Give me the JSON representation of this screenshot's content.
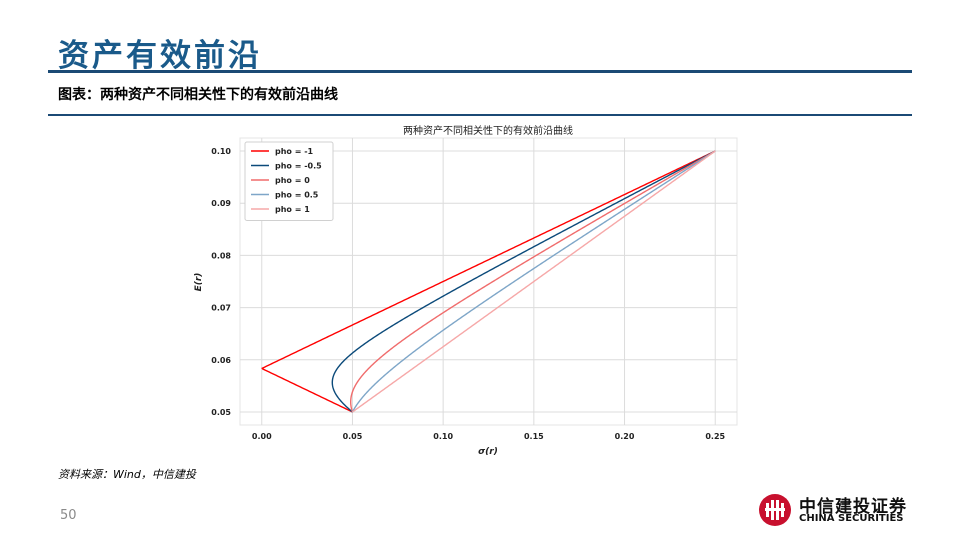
{
  "slide": {
    "title": "资产有效前沿",
    "caption": "图表：两种资产不同相关性下的有效前沿曲线",
    "source": "资料来源：Wind，中信建投",
    "page_number": "50"
  },
  "logo": {
    "name_cn": "中信建投证券",
    "name_en": "CHINA SECURITIES",
    "brand_color": "#c8102e"
  },
  "chart_data": {
    "type": "line",
    "title": "两种资产不同相关性下的有效前沿曲线",
    "xlabel": "σ(r)",
    "ylabel": "E(r)",
    "xlim": [
      -0.012,
      0.262
    ],
    "ylim": [
      0.0475,
      0.1025
    ],
    "x_ticks": [
      "0.00",
      "0.05",
      "0.10",
      "0.15",
      "0.20",
      "0.25"
    ],
    "y_ticks": [
      "0.05",
      "0.06",
      "0.07",
      "0.08",
      "0.09",
      "0.10"
    ],
    "grid": true,
    "legend_position": "top-left",
    "assets": {
      "a": {
        "sigma": 0.05,
        "mean": 0.05
      },
      "b": {
        "sigma": 0.25,
        "mean": 0.1
      }
    },
    "series": [
      {
        "name": "pho = -1",
        "rho": -1,
        "color": "#ff0000"
      },
      {
        "name": "pho = -0.5",
        "rho": -0.5,
        "color": "#0b4a7a"
      },
      {
        "name": "pho = 0",
        "rho": 0,
        "color": "#f06c6c"
      },
      {
        "name": "pho = 0.5",
        "rho": 0.5,
        "color": "#7ea6c8"
      },
      {
        "name": "pho = 1",
        "rho": 1,
        "color": "#f6a8a8"
      }
    ]
  }
}
